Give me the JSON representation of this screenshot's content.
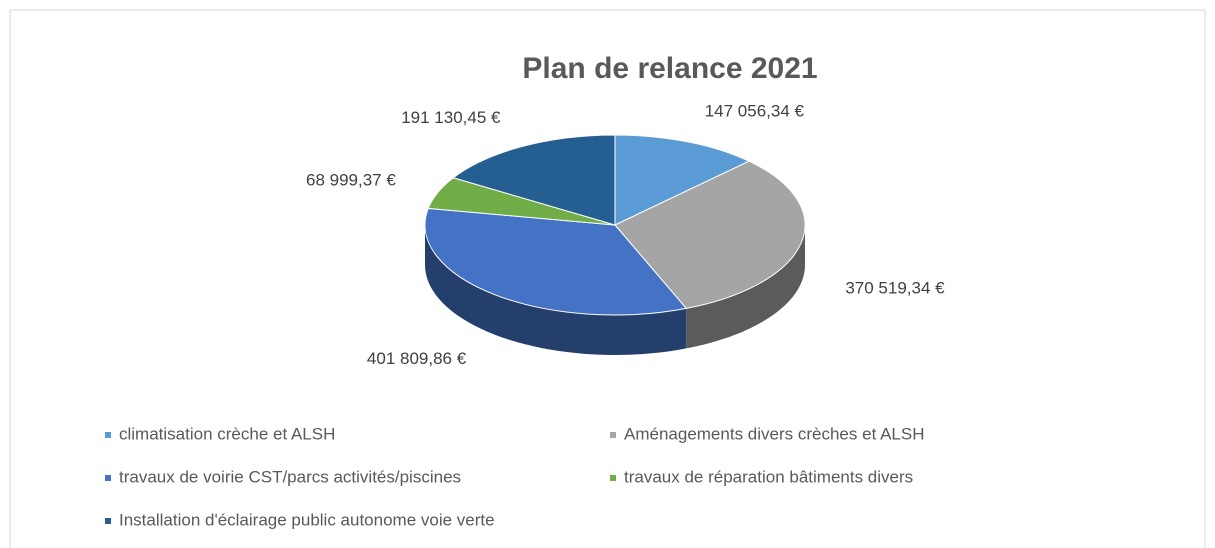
{
  "chart_data": {
    "type": "pie",
    "title": "Plan de relance 2021",
    "categories": [
      "climatisation crèche et ALSH",
      "Aménagements divers crèches et ALSH",
      "travaux de voirie CST/parcs activités/piscines",
      "travaux de réparation bâtiments divers",
      "Installation d'éclairage public autonome voie verte"
    ],
    "values": [
      147056.34,
      370519.34,
      401809.86,
      68999.37,
      191130.45
    ],
    "value_labels": [
      "147 056,34 €",
      "370 519,34 €",
      "401 809,86 €",
      "68 999,37 €",
      "191 130,45 €"
    ],
    "colors": [
      "#5b9bd5",
      "#a5a5a5",
      "#4472c4",
      "#70ad47",
      "#255e91"
    ],
    "legend": "bottom"
  }
}
